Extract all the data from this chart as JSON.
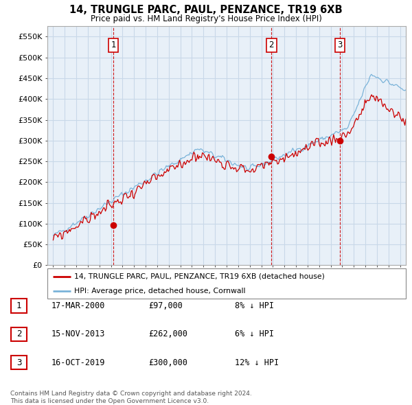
{
  "title": "14, TRUNGLE PARC, PAUL, PENZANCE, TR19 6XB",
  "subtitle": "Price paid vs. HM Land Registry's House Price Index (HPI)",
  "ylim": [
    0,
    575000
  ],
  "yticks": [
    0,
    50000,
    100000,
    150000,
    200000,
    250000,
    300000,
    350000,
    400000,
    450000,
    500000,
    550000
  ],
  "ytick_labels": [
    "£0",
    "£50K",
    "£100K",
    "£150K",
    "£200K",
    "£250K",
    "£300K",
    "£350K",
    "£400K",
    "£450K",
    "£500K",
    "£550K"
  ],
  "hpi_color": "#7ab3d9",
  "price_color": "#cc0000",
  "vline_color": "#cc0000",
  "grid_color": "#c8d8e8",
  "chart_bg": "#e8f0f8",
  "background_color": "#ffffff",
  "transactions": [
    {
      "date_num": 2000.21,
      "price": 97000,
      "label": "1"
    },
    {
      "date_num": 2013.88,
      "price": 262000,
      "label": "2"
    },
    {
      "date_num": 2019.79,
      "price": 300000,
      "label": "3"
    }
  ],
  "legend_entries": [
    {
      "label": "14, TRUNGLE PARC, PAUL, PENZANCE, TR19 6XB (detached house)",
      "color": "#cc0000"
    },
    {
      "label": "HPI: Average price, detached house, Cornwall",
      "color": "#7ab3d9"
    }
  ],
  "table_rows": [
    {
      "num": "1",
      "date": "17-MAR-2000",
      "price": "£97,000",
      "pct": "8% ↓ HPI"
    },
    {
      "num": "2",
      "date": "15-NOV-2013",
      "price": "£262,000",
      "pct": "6% ↓ HPI"
    },
    {
      "num": "3",
      "date": "16-OCT-2019",
      "price": "£300,000",
      "pct": "12% ↓ HPI"
    }
  ],
  "footnote": "Contains HM Land Registry data © Crown copyright and database right 2024.\nThis data is licensed under the Open Government Licence v3.0.",
  "xlim_start": 1994.5,
  "xlim_end": 2025.5
}
